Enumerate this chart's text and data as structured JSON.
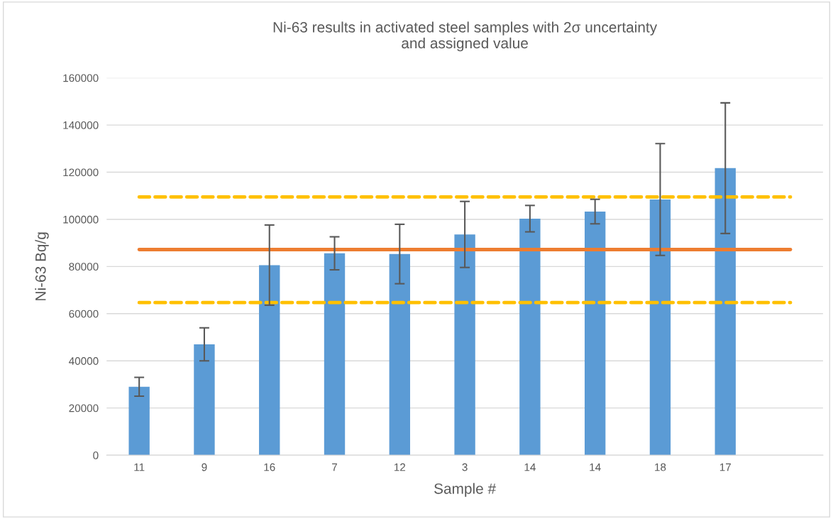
{
  "chart_data": {
    "type": "bar",
    "title": "Ni-63 results in activated steel samples with 2σ uncertainty\nand assigned value",
    "xlabel": "Sample #",
    "ylabel": "Ni-63 Bq/g",
    "categories": [
      "11",
      "9",
      "16",
      "7",
      "12",
      "3",
      "14",
      "14",
      "18",
      "17",
      null
    ],
    "values": [
      29000,
      47000,
      80600,
      85600,
      85300,
      93600,
      100300,
      103300,
      108400,
      121700,
      null
    ],
    "errors": [
      4000,
      7000,
      17000,
      7000,
      12600,
      14000,
      5600,
      5200,
      23700,
      27700,
      null
    ],
    "color": "#5b9bd5",
    "ylim": [
      0,
      160000
    ],
    "yticks": [
      0,
      20000,
      40000,
      60000,
      80000,
      100000,
      120000,
      140000,
      160000
    ],
    "grid": "y",
    "ref_lines": [
      {
        "axis": "y",
        "value": 87200,
        "color": "#ed7d31",
        "line_style": "solid"
      },
      {
        "axis": "y",
        "value": 109500,
        "color": "#ffc000",
        "line_style": "dashed"
      },
      {
        "axis": "y",
        "value": 64700,
        "color": "#ffc000",
        "line_style": "dashed"
      }
    ]
  }
}
